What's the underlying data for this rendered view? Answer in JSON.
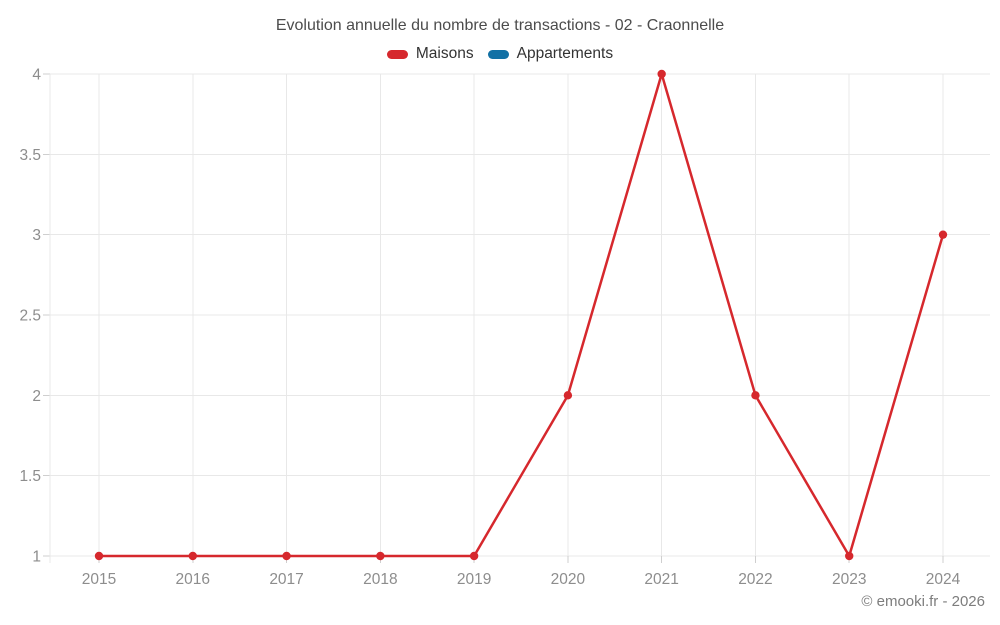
{
  "header": {
    "title": "Evolution annuelle du nombre de transactions - 02 - Craonnelle"
  },
  "legend": {
    "items": [
      {
        "label": "Maisons",
        "color": "#d6282d"
      },
      {
        "label": "Appartements",
        "color": "#1371a5"
      }
    ]
  },
  "footer": {
    "copyright": "© emooki.fr - 2026"
  },
  "chart_data": {
    "type": "line",
    "title": "Evolution annuelle du nombre de transactions - 02 - Craonnelle",
    "categories": [
      "2015",
      "2016",
      "2017",
      "2018",
      "2019",
      "2020",
      "2021",
      "2022",
      "2023",
      "2024"
    ],
    "series": [
      {
        "name": "Maisons",
        "color": "#d6282d",
        "values": [
          1,
          1,
          1,
          1,
          1,
          2,
          4,
          2,
          1,
          3
        ]
      },
      {
        "name": "Appartements",
        "color": "#1371a5",
        "values": []
      }
    ],
    "xlabel": "",
    "ylabel": "",
    "ylim": [
      1,
      4
    ],
    "y_ticks": [
      1,
      1.5,
      2,
      2.5,
      3,
      3.5,
      4
    ],
    "grid": true,
    "legend_position": "top",
    "grid_color": "#e8e8e8",
    "tick_color": "#cfcfcf",
    "axis_label_color": "#8d8d8d"
  }
}
